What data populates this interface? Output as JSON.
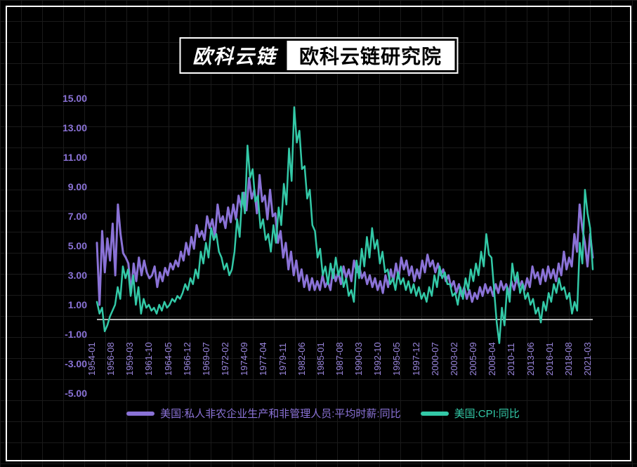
{
  "header": {
    "logo_left": "欧科云链",
    "logo_right": "欧科云链研究院"
  },
  "chart": {
    "type": "line",
    "background_color": "#000000",
    "grid_color": "#1a1a1a",
    "frame_color": "#ffffff",
    "y_axis": {
      "min": -5.0,
      "max": 15.0,
      "tick_step": 2.0,
      "ticks": [
        -5.0,
        -3.0,
        -1.0,
        1.0,
        3.0,
        5.0,
        7.0,
        9.0,
        11.0,
        13.0,
        15.0
      ],
      "label_color": "#8a72d6",
      "label_fontsize": 14,
      "zero_line_color": "#eeeeee"
    },
    "x_axis": {
      "ticks": [
        "1954-01",
        "1956-08",
        "1959-03",
        "1961-10",
        "1964-05",
        "1966-12",
        "1969-07",
        "1972-02",
        "1974-09",
        "1977-04",
        "1979-11",
        "1982-06",
        "1985-01",
        "1987-08",
        "1990-03",
        "1992-10",
        "1995-05",
        "1997-12",
        "2000-07",
        "2003-02",
        "2005-09",
        "2008-04",
        "2010-11",
        "2013-06",
        "2016-01",
        "2018-08",
        "2021-03"
      ],
      "label_color": "#9a86dd",
      "label_fontsize": 13,
      "label_rotation": -90
    },
    "series": [
      {
        "name": "wages",
        "label": "美国:私人非农企业生产和非管理人员:平均时薪:同比",
        "color": "#8a72d6",
        "line_width": 3,
        "data": [
          5.2,
          1.0,
          6.0,
          3.2,
          5.5,
          4.0,
          6.5,
          3.0,
          7.8,
          5.8,
          4.5,
          4.2,
          3.8,
          1.8,
          3.8,
          2.6,
          4.2,
          3.0,
          4.0,
          3.2,
          2.8,
          3.0,
          3.6,
          2.2,
          3.2,
          2.6,
          3.5,
          3.0,
          3.8,
          3.4,
          4.0,
          3.6,
          4.6,
          4.0,
          5.2,
          4.4,
          5.6,
          4.8,
          6.4,
          5.6,
          6.0,
          5.4,
          7.0,
          6.2,
          6.8,
          5.6,
          7.8,
          6.6,
          7.0,
          6.2,
          7.6,
          6.6,
          7.8,
          6.8,
          8.4,
          7.6,
          8.6,
          7.4,
          9.6,
          8.2,
          8.8,
          7.2,
          9.8,
          8.0,
          8.4,
          6.8,
          8.8,
          7.0,
          7.2,
          5.2,
          6.0,
          4.2,
          5.2,
          3.4,
          4.6,
          3.0,
          4.0,
          2.6,
          3.4,
          2.2,
          3.0,
          2.0,
          2.8,
          2.0,
          2.6,
          2.0,
          3.0,
          2.2,
          2.6,
          2.0,
          3.4,
          2.6,
          3.2,
          2.4,
          3.6,
          2.8,
          3.4,
          2.6,
          4.0,
          3.2,
          3.6,
          2.8,
          3.2,
          2.4,
          3.0,
          2.2,
          2.8,
          2.0,
          2.6,
          1.8,
          3.0,
          2.2,
          3.4,
          2.6,
          3.8,
          2.8,
          4.2,
          3.4,
          4.0,
          3.0,
          3.6,
          2.6,
          3.4,
          2.8,
          4.0,
          3.2,
          4.4,
          3.6,
          4.0,
          3.2,
          3.8,
          3.0,
          3.4,
          2.6,
          3.0,
          2.2,
          2.6,
          1.8,
          2.4,
          1.6,
          2.2,
          1.4,
          2.0,
          1.2,
          1.8,
          1.4,
          2.2,
          1.6,
          2.4,
          1.8,
          2.2,
          1.6,
          2.4,
          1.8,
          2.6,
          2.0,
          2.4,
          1.8,
          2.6,
          2.0,
          2.8,
          2.2,
          2.6,
          2.0,
          2.8,
          2.2,
          3.6,
          2.8,
          3.2,
          2.4,
          3.4,
          2.6,
          3.6,
          2.8,
          3.4,
          2.6,
          3.8,
          3.0,
          4.6,
          3.4,
          4.2,
          3.6,
          5.8,
          4.6,
          7.8,
          6.2,
          5.2,
          3.6,
          5.8,
          4.2
        ]
      },
      {
        "name": "cpi",
        "label": "美国:CPI:同比",
        "color": "#33c9a7",
        "line_width": 2.5,
        "data": [
          1.2,
          0.4,
          0.8,
          -0.8,
          -0.4,
          0.2,
          0.6,
          1.0,
          2.2,
          1.4,
          3.6,
          2.8,
          3.4,
          1.6,
          3.0,
          1.0,
          2.2,
          0.4,
          1.4,
          0.8,
          1.0,
          0.6,
          0.8,
          0.4,
          1.0,
          0.6,
          1.2,
          0.8,
          1.0,
          1.4,
          1.2,
          1.6,
          1.4,
          1.8,
          2.4,
          2.0,
          2.8,
          2.4,
          3.4,
          2.8,
          4.6,
          3.8,
          5.2,
          4.2,
          6.2,
          5.4,
          5.8,
          4.6,
          4.2,
          3.4,
          3.8,
          3.0,
          3.4,
          4.6,
          6.8,
          5.6,
          8.6,
          7.2,
          11.8,
          9.6,
          10.2,
          8.0,
          8.4,
          6.2,
          6.8,
          5.4,
          5.8,
          4.6,
          6.4,
          5.2,
          7.6,
          6.4,
          9.2,
          7.8,
          11.6,
          9.4,
          14.4,
          12.0,
          12.8,
          10.2,
          10.4,
          8.2,
          8.8,
          6.4,
          6.0,
          4.2,
          4.8,
          3.0,
          3.6,
          2.4,
          3.8,
          2.8,
          4.2,
          3.0,
          3.6,
          2.2,
          2.8,
          1.6,
          2.0,
          1.2,
          4.0,
          2.8,
          4.8,
          3.6,
          5.6,
          4.2,
          6.2,
          4.8,
          5.4,
          3.8,
          4.6,
          3.2,
          3.4,
          2.4,
          2.8,
          2.0,
          3.2,
          2.4,
          2.8,
          2.0,
          2.6,
          1.8,
          2.4,
          1.6,
          2.2,
          1.4,
          1.8,
          1.2,
          2.2,
          1.6,
          3.0,
          2.2,
          3.6,
          2.8,
          3.2,
          2.4,
          2.4,
          1.6,
          1.8,
          1.0,
          2.2,
          1.4,
          2.8,
          2.0,
          3.4,
          2.6,
          3.8,
          3.0,
          4.6,
          3.6,
          5.8,
          4.4,
          4.2,
          2.0,
          -0.2,
          -1.6,
          0.8,
          -0.4,
          2.2,
          1.2,
          3.8,
          2.6,
          3.2,
          1.8,
          2.4,
          1.4,
          1.8,
          1.0,
          1.4,
          0.4,
          0.8,
          -0.2,
          1.2,
          0.6,
          1.8,
          1.2,
          2.4,
          1.8,
          2.8,
          2.0,
          2.2,
          1.4,
          1.8,
          0.4,
          1.2,
          0.6,
          5.2,
          3.8,
          8.8,
          7.2,
          6.2,
          3.4
        ]
      }
    ],
    "legend": {
      "position": "bottom",
      "fontsize": 15
    }
  }
}
